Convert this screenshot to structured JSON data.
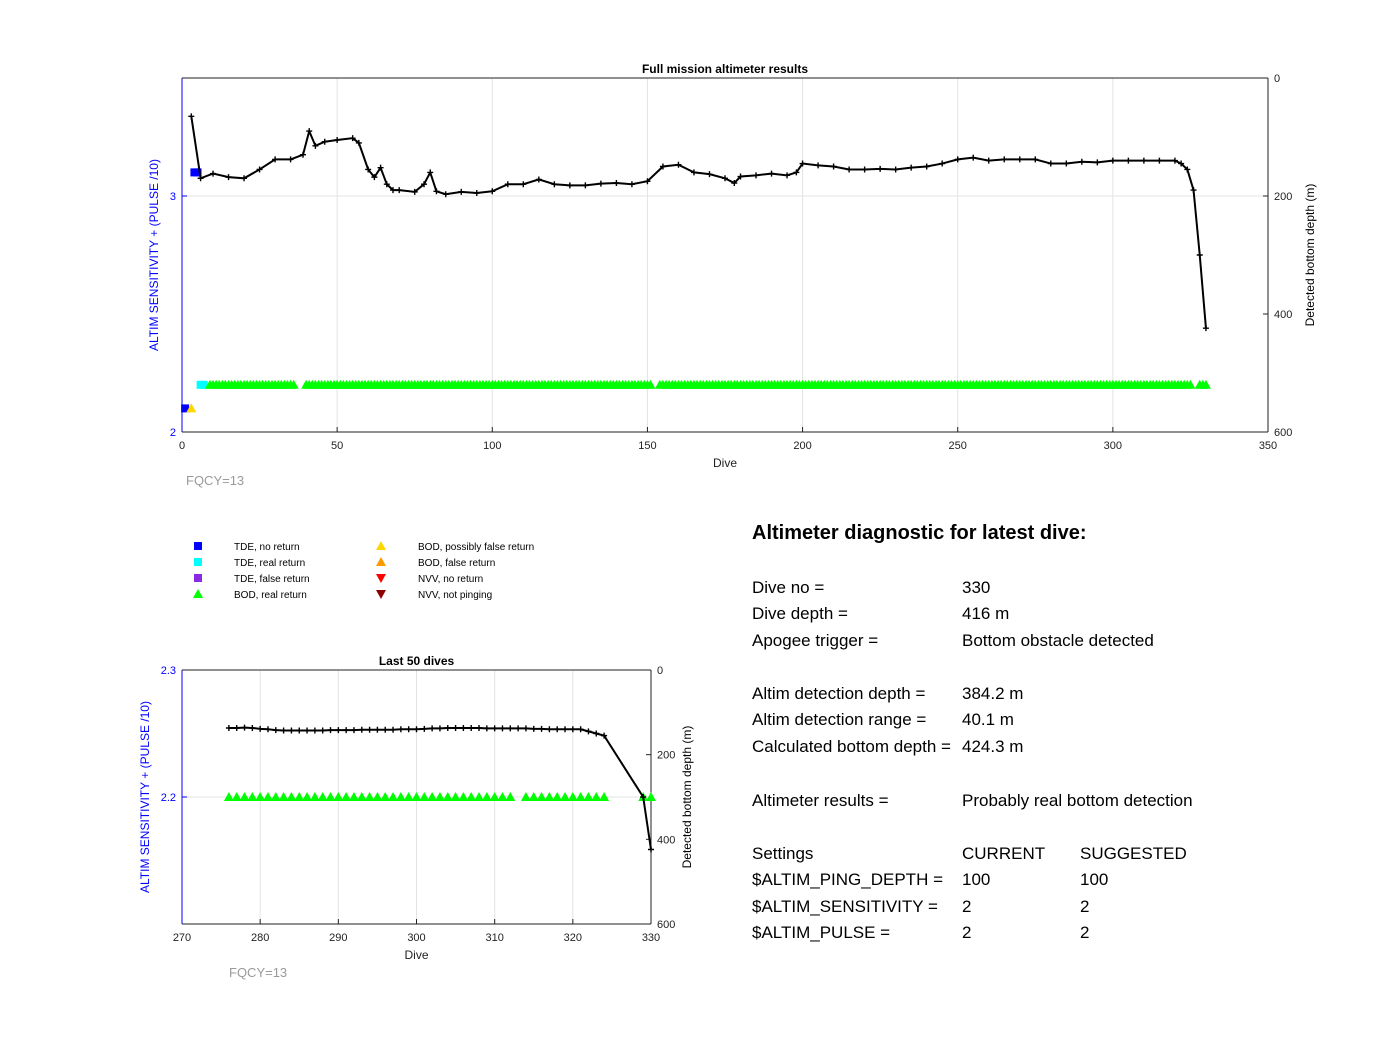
{
  "colors": {
    "left_axis": "#0000ff",
    "right_axis": "#000000",
    "grid": "#e3e3e3",
    "depth_line": "#000000",
    "fqcy_label": "#9a9a9a",
    "tde_no_return": "#0000ff",
    "tde_real_return": "#00ffff",
    "tde_false_return": "#8a2be2",
    "bod_real_return": "#00ff00",
    "bod_possibly_false": "#ffd700",
    "bod_false_return": "#ff9900",
    "nvv_no_return": "#ff0000",
    "nvv_not_pinging": "#8b0000"
  },
  "chart_data": [
    {
      "type": "scatter",
      "title": "Full mission altimeter results",
      "xlabel": "Dive",
      "ylabel_left": "ALTIM SENSITIVITY + (PULSE /10)",
      "ylabel_right": "Detected bottom depth (m)",
      "xlim": [
        0,
        350
      ],
      "ylim_left": [
        2,
        3.5
      ],
      "ylim_right": [
        600,
        0
      ],
      "right_axis_reversed": true,
      "grid": "x",
      "xticks": [
        "0",
        "50",
        "100",
        "150",
        "200",
        "250",
        "300",
        "350"
      ],
      "yticks_left": [
        "2",
        "3"
      ],
      "yticks_right": [
        "0",
        "200",
        "400",
        "600"
      ],
      "annotation": "FQCY=13",
      "series": [
        {
          "name": "TDE, no return",
          "marker": "square",
          "x": [
            1,
            4,
            5
          ],
          "y": [
            2.1,
            3.1,
            3.1
          ]
        },
        {
          "name": "TDE, real return",
          "marker": "square",
          "x": [
            6,
            7
          ],
          "y": [
            2.2,
            2.2
          ]
        },
        {
          "name": "BOD, possibly false return",
          "marker": "triangle-up",
          "x": [
            3
          ],
          "y": [
            2.1
          ]
        },
        {
          "name": "BOD, real return",
          "marker": "triangle-up",
          "segments": [
            [
              9,
              36
            ],
            [
              40,
              151
            ],
            [
              154,
              325
            ],
            [
              328,
              330
            ]
          ],
          "y": 2.2
        },
        {
          "name": "Detected bottom depth",
          "axis": "right",
          "x": [
            3,
            6,
            10,
            15,
            20,
            25,
            30,
            35,
            39,
            41,
            43,
            46,
            50,
            55,
            57,
            60,
            62,
            64,
            66,
            68,
            70,
            75,
            78,
            80,
            82,
            85,
            90,
            95,
            100,
            105,
            110,
            115,
            120,
            125,
            130,
            135,
            140,
            145,
            150,
            155,
            160,
            165,
            170,
            175,
            178,
            180,
            185,
            190,
            195,
            198,
            200,
            205,
            210,
            215,
            220,
            225,
            230,
            235,
            240,
            245,
            250,
            255,
            260,
            265,
            270,
            275,
            280,
            285,
            290,
            295,
            300,
            305,
            310,
            315,
            320,
            322,
            324,
            326,
            328,
            330
          ],
          "y": [
            65,
            170,
            162,
            168,
            170,
            155,
            138,
            138,
            130,
            90,
            115,
            108,
            105,
            102,
            110,
            155,
            168,
            152,
            180,
            190,
            190,
            193,
            180,
            160,
            192,
            197,
            193,
            195,
            192,
            180,
            180,
            172,
            180,
            182,
            182,
            179,
            178,
            180,
            175,
            150,
            147,
            160,
            163,
            170,
            178,
            167,
            165,
            162,
            165,
            160,
            145,
            148,
            150,
            155,
            155,
            154,
            155,
            152,
            150,
            145,
            138,
            135,
            140,
            138,
            138,
            138,
            145,
            145,
            142,
            143,
            140,
            140,
            140,
            140,
            140,
            145,
            155,
            190,
            300,
            424
          ]
        }
      ]
    },
    {
      "type": "scatter",
      "title": "Last 50 dives",
      "xlabel": "Dive",
      "ylabel_left": "ALTIM SENSITIVITY + (PULSE /10)",
      "ylabel_right": "Detected bottom depth (m)",
      "xlim": [
        270,
        330
      ],
      "ylim_left": [
        2.1,
        2.3
      ],
      "ylim_right": [
        600,
        0
      ],
      "right_axis_reversed": true,
      "grid": "x",
      "xticks": [
        "270",
        "280",
        "290",
        "300",
        "310",
        "320",
        "330"
      ],
      "yticks_left": [
        "2.2",
        "2.3"
      ],
      "yticks_right": [
        "0",
        "200",
        "400",
        "600"
      ],
      "annotation": "FQCY=13",
      "series": [
        {
          "name": "BOD, real return",
          "marker": "triangle-up",
          "segments": [
            [
              276,
              312
            ],
            [
              314,
              324
            ],
            [
              329,
              330
            ]
          ],
          "y": 2.2
        },
        {
          "name": "Detected bottom depth",
          "axis": "right",
          "x": [
            276,
            277,
            278,
            279,
            280,
            281,
            282,
            283,
            284,
            285,
            286,
            287,
            288,
            289,
            290,
            291,
            292,
            293,
            294,
            295,
            296,
            297,
            298,
            299,
            300,
            301,
            302,
            303,
            304,
            305,
            306,
            307,
            308,
            309,
            310,
            311,
            312,
            313,
            314,
            315,
            316,
            317,
            318,
            319,
            320,
            321,
            322,
            323,
            324,
            329,
            330
          ],
          "y": [
            137,
            137,
            136,
            137,
            139,
            140,
            142,
            143,
            143,
            143,
            143,
            143,
            143,
            142,
            142,
            142,
            142,
            141,
            141,
            141,
            141,
            141,
            140,
            140,
            140,
            139,
            138,
            138,
            137,
            137,
            137,
            137,
            137,
            138,
            138,
            138,
            138,
            138,
            138,
            139,
            139,
            140,
            140,
            140,
            140,
            140,
            145,
            150,
            155,
            300,
            424
          ]
        }
      ]
    }
  ],
  "legend": {
    "items": [
      {
        "label": "TDE, no return",
        "marker": "square",
        "color": "#0000ff"
      },
      {
        "label": "TDE, real return",
        "marker": "square",
        "color": "#00ffff"
      },
      {
        "label": "TDE, false return",
        "marker": "square",
        "color": "#8a2be2"
      },
      {
        "label": "BOD, real return",
        "marker": "triangle-up",
        "color": "#00ff00"
      },
      {
        "label": "BOD, possibly false return",
        "marker": "triangle-up",
        "color": "#ffd700"
      },
      {
        "label": "BOD, false return",
        "marker": "triangle-up",
        "color": "#ff9900"
      },
      {
        "label": "NVV, no return",
        "marker": "triangle-down",
        "color": "#ff0000"
      },
      {
        "label": "NVV, not pinging",
        "marker": "triangle-down",
        "color": "#8b0000"
      }
    ]
  },
  "diagnostic": {
    "title": "Altimeter diagnostic for latest dive:",
    "dive_no_label": "Dive no =",
    "dive_no_value": "330",
    "dive_depth_label": "Dive depth =",
    "dive_depth_value": "416 m",
    "apogee_label": "Apogee trigger =",
    "apogee_value": "Bottom obstacle detected",
    "detect_depth_label": "Altim detection depth =",
    "detect_depth_value": "384.2 m",
    "detect_range_label": "Altim detection range =",
    "detect_range_value": "40.1 m",
    "calc_depth_label": "Calculated bottom depth =",
    "calc_depth_value": "424.3 m",
    "results_label": "Altimeter results =",
    "results_value": "Probably real bottom detection",
    "settings_label": "Settings",
    "current_label": "CURRENT",
    "suggested_label": "SUGGESTED",
    "ping_label": "$ALTIM_PING_DEPTH =",
    "ping_current": "100",
    "ping_suggested": "100",
    "sens_label": "$ALTIM_SENSITIVITY =",
    "sens_current": "2",
    "sens_suggested": "2",
    "pulse_label": "$ALTIM_PULSE =",
    "pulse_current": "2",
    "pulse_suggested": "2"
  }
}
